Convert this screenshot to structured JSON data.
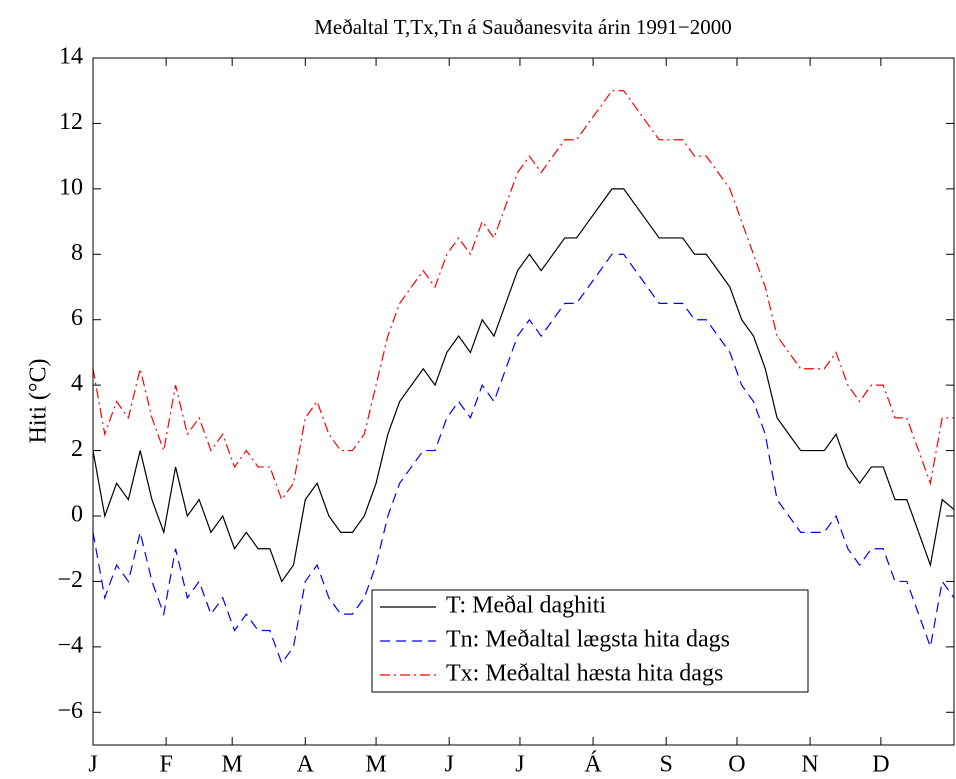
{
  "chart_data": {
    "type": "line",
    "title": "Meðaltal T,Tx,Tn á Sauðanesvita árin 1991−2000",
    "y_label": "Hiti (°C)",
    "x": [
      1,
      6,
      11,
      16,
      21,
      26,
      31,
      36,
      41,
      46,
      51,
      56,
      61,
      66,
      71,
      76,
      81,
      86,
      91,
      96,
      101,
      106,
      111,
      116,
      121,
      126,
      131,
      136,
      141,
      146,
      151,
      156,
      161,
      166,
      171,
      176,
      181,
      186,
      191,
      196,
      201,
      206,
      211,
      216,
      221,
      226,
      231,
      236,
      241,
      246,
      251,
      256,
      261,
      266,
      271,
      276,
      281,
      286,
      291,
      296,
      301,
      306,
      311,
      316,
      321,
      326,
      331,
      336,
      341,
      346,
      351,
      356,
      361,
      366
    ],
    "xlim": [
      1,
      366
    ],
    "xticks": [
      {
        "value": 1,
        "label": "J"
      },
      {
        "value": 32,
        "label": "F"
      },
      {
        "value": 60,
        "label": "M"
      },
      {
        "value": 91,
        "label": "A"
      },
      {
        "value": 121,
        "label": "M"
      },
      {
        "value": 152,
        "label": "J"
      },
      {
        "value": 182,
        "label": "J"
      },
      {
        "value": 213,
        "label": "Á"
      },
      {
        "value": 244,
        "label": "S"
      },
      {
        "value": 274,
        "label": "O"
      },
      {
        "value": 305,
        "label": "N"
      },
      {
        "value": 335,
        "label": "D"
      }
    ],
    "ylim": [
      -7,
      14
    ],
    "yticks": [
      {
        "value": -6,
        "label": "−6"
      },
      {
        "value": -4,
        "label": "−4"
      },
      {
        "value": -2,
        "label": "−2"
      },
      0,
      2,
      4,
      6,
      8,
      10,
      12,
      14
    ],
    "series": [
      {
        "name": "T: Meðal daghiti",
        "color": "#000000",
        "linestyle": "solid",
        "values": [
          2,
          0,
          1,
          0.5,
          2,
          0.5,
          -0.5,
          1.5,
          0,
          0.5,
          -0.5,
          0,
          -1,
          -0.5,
          -1,
          -1,
          -2,
          -1.5,
          0.5,
          1,
          0,
          -0.5,
          -0.5,
          0,
          1,
          2.5,
          3.5,
          4,
          4.5,
          4,
          5,
          5.5,
          5,
          6,
          5.5,
          6.5,
          7.5,
          8,
          7.5,
          8,
          8.5,
          8.5,
          9,
          9.5,
          10,
          10,
          9.5,
          9,
          8.5,
          8.5,
          8.5,
          8,
          8,
          7.5,
          7,
          6,
          5.5,
          4.5,
          3,
          2.5,
          2,
          2,
          2,
          2.5,
          1.5,
          1,
          1.5,
          1.5,
          0.5,
          0.5,
          -0.5,
          -1.5,
          0.5,
          0.2
        ]
      },
      {
        "name": "Tn: Meðaltal lægsta hita dags",
        "color": "#0000ff",
        "linestyle": "dashed",
        "values": [
          -0.5,
          -2.5,
          -1.5,
          -2,
          -0.5,
          -2,
          -3,
          -1,
          -2.5,
          -2,
          -3,
          -2.5,
          -3.5,
          -3,
          -3.5,
          -3.5,
          -4.5,
          -4,
          -2,
          -1.5,
          -2.5,
          -3,
          -3,
          -2.5,
          -1.5,
          0,
          1,
          1.5,
          2,
          2,
          3,
          3.5,
          3,
          4,
          3.5,
          4.5,
          5.5,
          6,
          5.5,
          6,
          6.5,
          6.5,
          7,
          7.5,
          8,
          8,
          7.5,
          7,
          6.5,
          6.5,
          6.5,
          6,
          6,
          5.5,
          5,
          4,
          3.5,
          2.5,
          0.5,
          0,
          -0.5,
          -0.5,
          -0.5,
          0,
          -1,
          -1.5,
          -1,
          -1,
          -2,
          -2,
          -3,
          -4,
          -2,
          -2.5
        ]
      },
      {
        "name": "Tx: Meðaltal hæsta hita dags",
        "color": "#ff0000",
        "linestyle": "dashdot",
        "values": [
          4.5,
          2.5,
          3.5,
          3,
          4.5,
          3,
          2,
          4,
          2.5,
          3,
          2,
          2.5,
          1.5,
          2,
          1.5,
          1.5,
          0.5,
          1,
          3,
          3.5,
          2.5,
          2,
          2,
          2.5,
          4,
          5.5,
          6.5,
          7,
          7.5,
          7,
          8,
          8.5,
          8,
          9,
          8.5,
          9.5,
          10.5,
          11,
          10.5,
          11,
          11.5,
          11.5,
          12,
          12.5,
          13,
          13,
          12.5,
          12,
          11.5,
          11.5,
          11.5,
          11,
          11,
          10.5,
          10,
          9,
          8,
          7,
          5.5,
          5,
          4.5,
          4.5,
          4.5,
          5,
          4,
          3.5,
          4,
          4,
          3,
          3,
          2,
          1,
          3,
          3
        ]
      }
    ]
  }
}
